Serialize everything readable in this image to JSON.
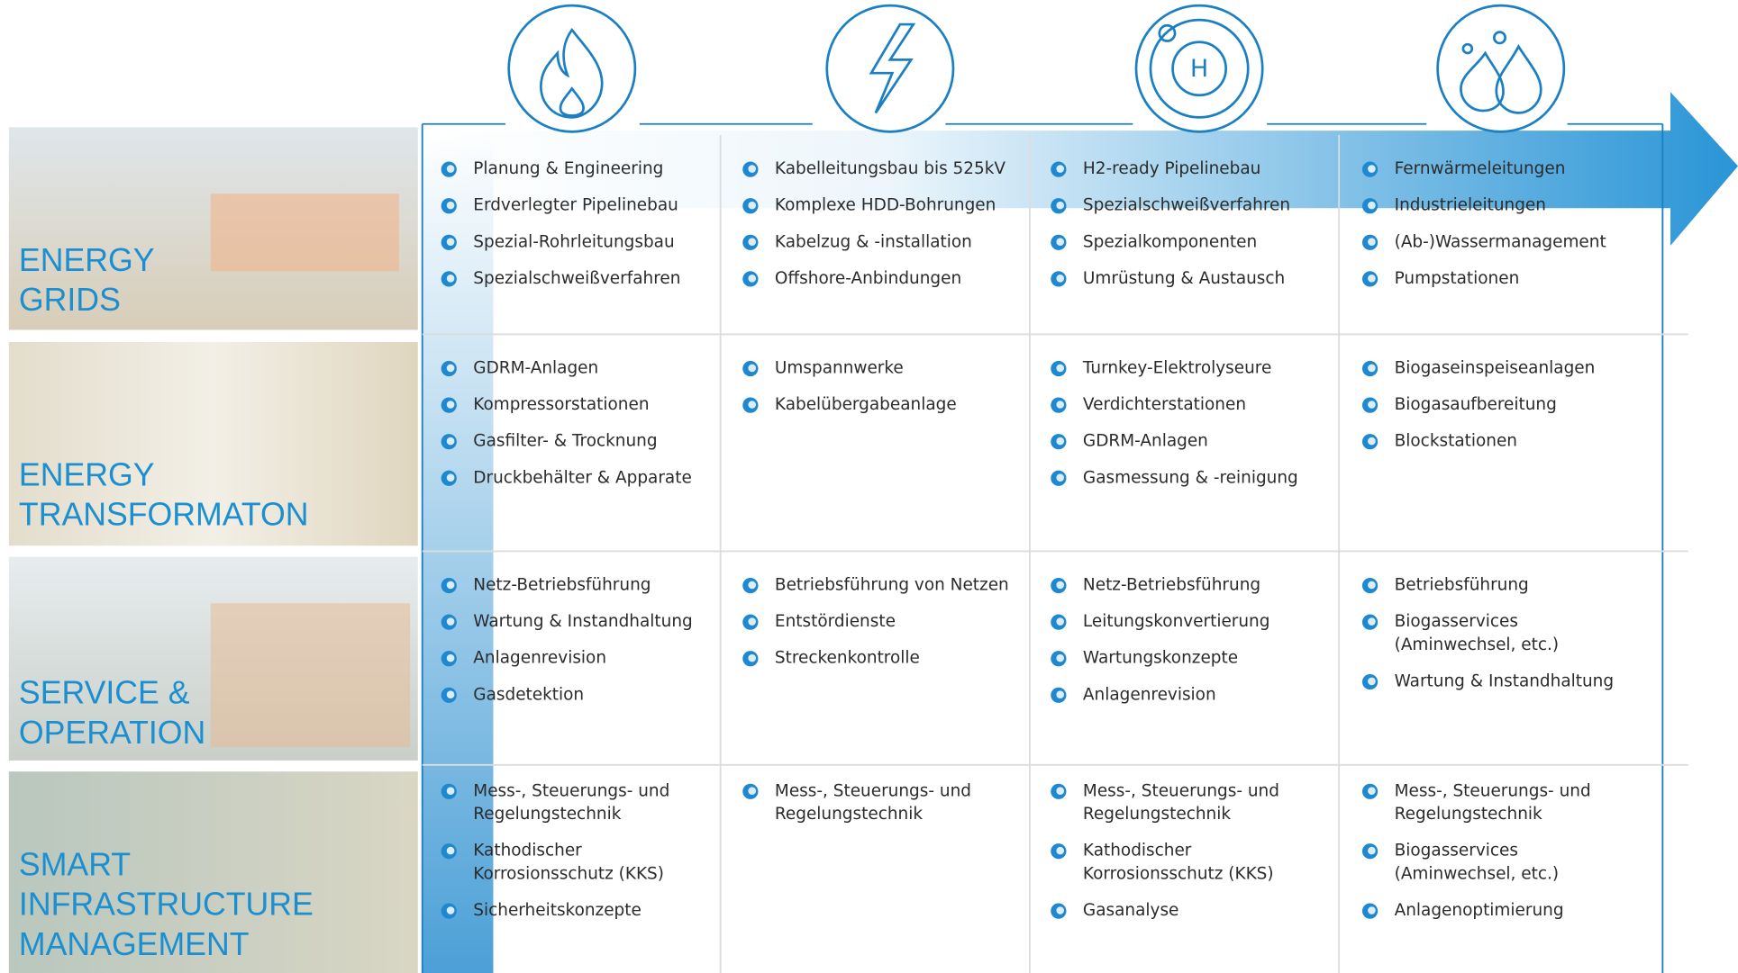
{
  "icons": {
    "hydrogen_label": "H"
  },
  "rows": [
    {
      "label": [
        "ENERGY",
        "GRIDS"
      ],
      "cells": [
        [
          "Planung & Engineering",
          "Erdverlegter Pipelinebau",
          "Spezial-Rohrleitungsbau",
          "Spezialschweißverfahren"
        ],
        [
          "Kabelleitungsbau bis 525kV",
          "Komplexe HDD-Bohrungen",
          "Kabelzug & -installation",
          "Offshore-Anbindungen"
        ],
        [
          "H2-ready Pipelinebau",
          "Spezialschweißverfahren",
          "Spezialkomponenten",
          "Umrüstung & Austausch"
        ],
        [
          "Fernwärmeleitungen",
          "Industrieleitungen",
          "(Ab-)Wassermanagement",
          "Pumpstationen"
        ]
      ]
    },
    {
      "label": [
        "ENERGY",
        "TRANSFORMATON"
      ],
      "cells": [
        [
          "GDRM-Anlagen",
          "Kompressorstationen",
          "Gasfilter- & Trocknung",
          "Druckbehälter & Apparate"
        ],
        [
          "Umspannwerke",
          "Kabelübergabeanlage"
        ],
        [
          "Turnkey-Elektrolyseure",
          "Verdichterstationen",
          "GDRM-Anlagen",
          "Gasmessung & -reinigung"
        ],
        [
          "Biogaseinspeiseanlagen",
          "Biogasaufbereitung",
          "Blockstationen"
        ]
      ]
    },
    {
      "label": [
        "SERVICE &",
        "OPERATION"
      ],
      "cells": [
        [
          "Netz-Betriebsführung",
          "Wartung & Instandhaltung",
          "Anlagenrevision",
          "Gasdetektion"
        ],
        [
          "Betriebsführung von Netzen",
          "Entstördienste",
          "Streckenkontrolle"
        ],
        [
          "Netz-Betriebsführung",
          "Leitungskonvertierung",
          "Wartungskonzepte",
          "Anlagenrevision"
        ],
        [
          "Betriebsführung",
          [
            "Biogasservices",
            "(Aminwechsel, etc.)"
          ],
          "Wartung & Instandhaltung"
        ]
      ]
    },
    {
      "label": [
        "SMART",
        "INFRASTRUCTURE",
        "MANAGEMENT"
      ],
      "cells": [
        [
          [
            "Mess-, Steuerungs- und",
            "Regelungstechnik"
          ],
          [
            "Kathodischer",
            "Korrosionsschutz (KKS)"
          ],
          "Sicherheitskonzepte"
        ],
        [
          [
            "Mess-, Steuerungs- und",
            "Regelungstechnik"
          ]
        ],
        [
          [
            "Mess-, Steuerungs- und",
            "Regelungstechnik"
          ],
          [
            "Kathodischer",
            "Korrosionsschutz (KKS)"
          ],
          "Gasanalyse"
        ],
        [
          [
            "Mess-, Steuerungs- und",
            "Regelungstechnik"
          ],
          [
            "Biogasservices",
            "(Aminwechsel, etc.)"
          ],
          "Anlagenoptimierung"
        ]
      ]
    }
  ]
}
